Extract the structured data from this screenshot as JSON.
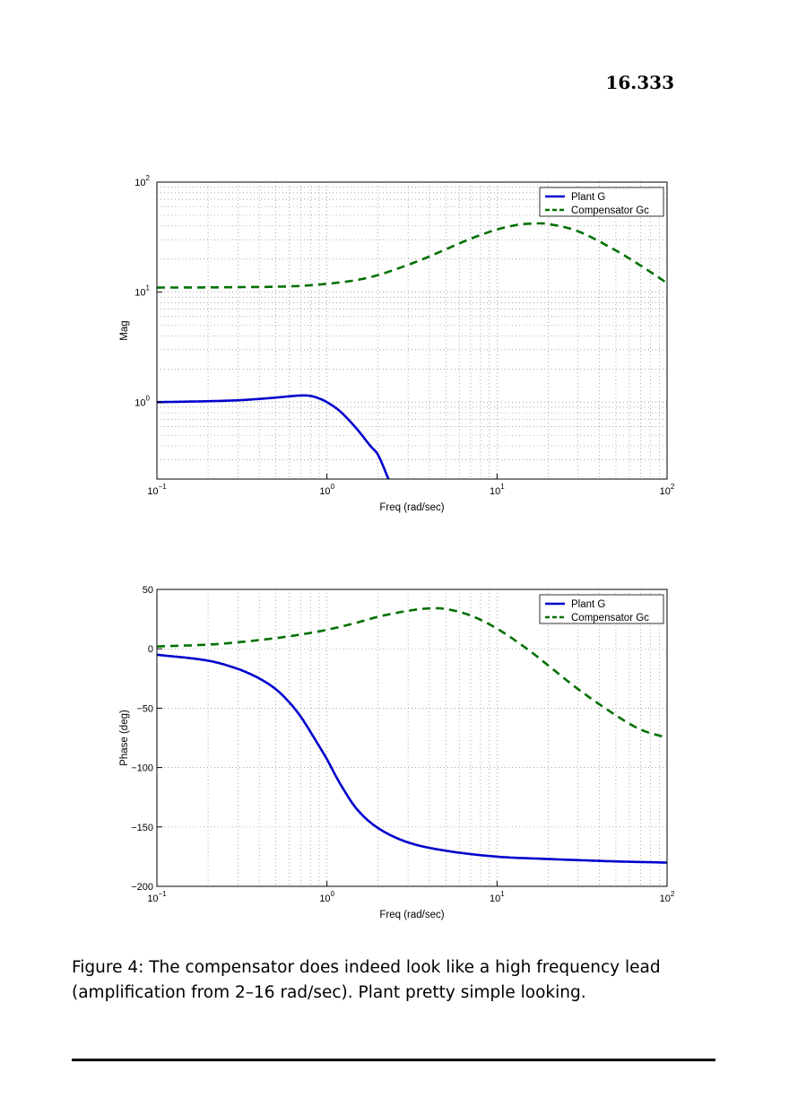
{
  "page_number": "16.333",
  "caption": "Figure 4: The compensator does indeed look like a high frequency lead (amplification from 2–16 rad/sec). Plant pretty simple looking.",
  "colors": {
    "plant": "#0000cc",
    "compensator": "#007000",
    "grid": "#8a8a8a"
  },
  "chart_data": [
    {
      "type": "line",
      "ylabel": "Mag",
      "xlabel": "Freq (rad/sec)",
      "x_scale": "log",
      "y_scale": "log",
      "xlim": [
        0.1,
        100
      ],
      "ylim": [
        0.2,
        100
      ],
      "grid": true,
      "legend_position": "top-right",
      "x_ticks": [
        {
          "base": "10",
          "exp": "−1"
        },
        {
          "base": "10",
          "exp": "0"
        },
        {
          "base": "10",
          "exp": "1"
        },
        {
          "base": "10",
          "exp": "2"
        }
      ],
      "y_ticks": [
        {
          "base": "10",
          "exp": "0"
        },
        {
          "base": "10",
          "exp": "1"
        },
        {
          "base": "10",
          "exp": "2"
        }
      ],
      "series": [
        {
          "name": "Plant G",
          "style": "solid",
          "x": [
            0.1,
            0.2,
            0.3,
            0.4,
            0.5,
            0.6,
            0.707,
            0.8,
            0.9,
            1.0,
            1.2,
            1.5,
            1.8,
            2.0,
            2.3
          ],
          "y": [
            1.0,
            1.02,
            1.04,
            1.07,
            1.1,
            1.13,
            1.15,
            1.14,
            1.08,
            1.0,
            0.82,
            0.57,
            0.4,
            0.33,
            0.2
          ]
        },
        {
          "name": "Compensator Gc",
          "style": "dashed",
          "x": [
            0.1,
            0.2,
            0.3,
            0.5,
            0.7,
            1.0,
            1.5,
            2.0,
            3.0,
            4.0,
            5.0,
            7.0,
            10.0,
            13.0,
            16.0,
            20.0,
            30.0,
            50.0,
            70.0,
            100.0
          ],
          "y": [
            11.0,
            11.05,
            11.1,
            11.2,
            11.4,
            11.9,
            12.9,
            14.3,
            17.7,
            21.1,
            24.5,
            30.6,
            37.1,
            40.7,
            42.0,
            41.6,
            35.7,
            23.9,
            17.4,
            12.1
          ]
        }
      ]
    },
    {
      "type": "line",
      "ylabel": "Phase (deg)",
      "xlabel": "Freq (rad/sec)",
      "x_scale": "log",
      "xlim": [
        0.1,
        100
      ],
      "ylim": [
        -200,
        50
      ],
      "grid": true,
      "legend_position": "top-right",
      "x_ticks": [
        {
          "base": "10",
          "exp": "−1"
        },
        {
          "base": "10",
          "exp": "0"
        },
        {
          "base": "10",
          "exp": "1"
        },
        {
          "base": "10",
          "exp": "2"
        }
      ],
      "y_ticks": [
        "50",
        "0",
        "−50",
        "−100",
        "−150",
        "−200"
      ],
      "series": [
        {
          "name": "Plant G",
          "style": "solid",
          "x": [
            0.1,
            0.2,
            0.3,
            0.4,
            0.5,
            0.6,
            0.7,
            0.8,
            0.9,
            1.0,
            1.2,
            1.5,
            2.0,
            3.0,
            5.0,
            10.0,
            20.0,
            50.0,
            100.0
          ],
          "y": [
            -5,
            -10,
            -17,
            -25,
            -34,
            -45,
            -57,
            -70,
            -82,
            -93,
            -114,
            -135,
            -151,
            -163,
            -170,
            -175,
            -177,
            -179,
            -180
          ]
        },
        {
          "name": "Compensator Gc",
          "style": "dashed",
          "x": [
            0.1,
            0.2,
            0.3,
            0.5,
            0.7,
            1.0,
            1.5,
            2.0,
            3.0,
            4.0,
            5.0,
            7.0,
            10.0,
            15.0,
            20.0,
            30.0,
            50.0,
            70.0,
            100.0
          ],
          "y": [
            2,
            3.5,
            5.5,
            9,
            12,
            16,
            22,
            27,
            32,
            34,
            33.5,
            28,
            17,
            0,
            -14,
            -34,
            -56,
            -68,
            -75
          ]
        }
      ]
    }
  ]
}
